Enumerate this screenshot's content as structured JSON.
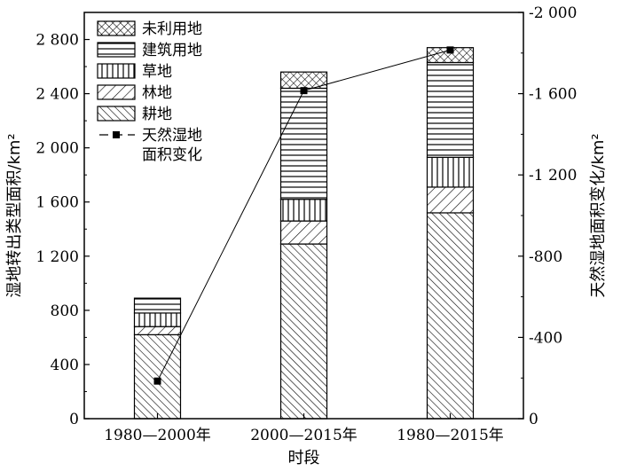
{
  "chart_data": {
    "type": "bar",
    "xlabel": "时段",
    "ylabel": "湿地转出类型面积/km²",
    "y2label": "天然湿地面积变化/km²",
    "categories": [
      "1980—2000年",
      "2000—2015年",
      "1980—2015年"
    ],
    "ylim": [
      0,
      3000
    ],
    "y_ticks": [
      0,
      400,
      800,
      1200,
      1600,
      2000,
      2400,
      2800
    ],
    "y_tick_labels": [
      "0",
      "400",
      "800",
      "1 200",
      "1 600",
      "2 000",
      "2 400",
      "2 800"
    ],
    "y2lim": [
      0,
      -2000
    ],
    "y2_ticks": [
      0,
      -400,
      -800,
      -1200,
      -1600,
      -2000
    ],
    "y2_tick_labels": [
      "0",
      "-400",
      "-800",
      "-1 200",
      "-1 600",
      "-2 000"
    ],
    "stacked": true,
    "series": [
      {
        "name": "耕地",
        "pattern": "diag-dense",
        "values": [
          620,
          1290,
          1520
        ]
      },
      {
        "name": "林地",
        "pattern": "diag-reverse",
        "values": [
          60,
          170,
          190
        ]
      },
      {
        "name": "草地",
        "pattern": "vertical",
        "values": [
          100,
          160,
          220
        ]
      },
      {
        "name": "建筑用地",
        "pattern": "horizontal",
        "values": [
          110,
          820,
          700
        ]
      },
      {
        "name": "未利用地",
        "pattern": "crosshatch",
        "values": [
          0,
          120,
          110
        ]
      }
    ],
    "line_series": {
      "name": "天然湿地\n面积变化",
      "axis": "right",
      "marker": "square",
      "values": [
        -185,
        -1615,
        -1815
      ]
    },
    "grid": false,
    "legend_position": "top-left"
  }
}
